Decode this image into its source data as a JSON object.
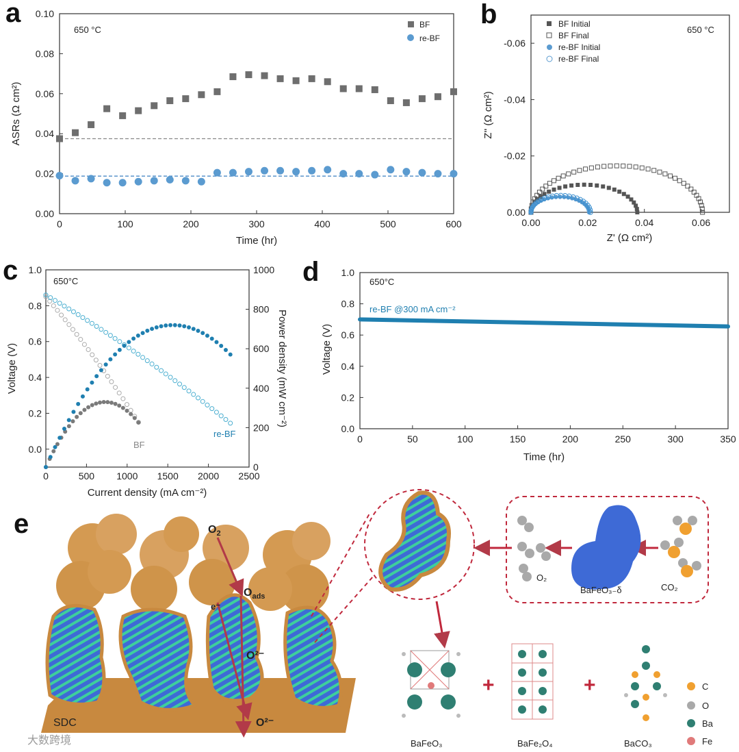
{
  "colors": {
    "bf": "#6e6e6e",
    "rebf": "#5b9bd0",
    "rebf_dark": "#1f7fb0",
    "sdc": "#d49a52",
    "arrow": "#b23a48",
    "ba": "#2f7f72",
    "fe": "#e07a7a",
    "c": "#f0a030",
    "o": "#a9a9a9",
    "blue_particle": "#3e6ad6",
    "green_stripe": "#3ecf9c"
  },
  "panels": {
    "a": "a",
    "b": "b",
    "c": "c",
    "d": "d",
    "e": "e"
  },
  "chart_data": [
    {
      "id": "a",
      "type": "scatter",
      "temperature_note": "650 °C",
      "xlabel": "Time (hr)",
      "ylabel": "ASRs (Ω cm²)",
      "xlim": [
        0,
        600
      ],
      "ylim": [
        0,
        0.1
      ],
      "xticks": [
        "0",
        "100",
        "200",
        "300",
        "400",
        "500",
        "600"
      ],
      "yticks": [
        "0.00",
        "0.02",
        "0.04",
        "0.06",
        "0.08",
        "0.10"
      ],
      "series": [
        {
          "name": "BF",
          "marker": "square",
          "x": [
            0,
            24,
            48,
            72,
            96,
            120,
            144,
            168,
            192,
            216,
            240,
            264,
            288,
            312,
            336,
            360,
            384,
            408,
            432,
            456,
            480,
            504,
            528,
            552,
            576,
            600
          ],
          "y": [
            0.0375,
            0.0405,
            0.0445,
            0.0525,
            0.049,
            0.0515,
            0.054,
            0.0565,
            0.0575,
            0.0595,
            0.061,
            0.0685,
            0.0695,
            0.069,
            0.0675,
            0.0665,
            0.0675,
            0.066,
            0.0625,
            0.0625,
            0.062,
            0.0565,
            0.0555,
            0.0575,
            0.0585,
            0.061
          ]
        },
        {
          "name": "re-BF",
          "marker": "circle",
          "x": [
            0,
            24,
            48,
            72,
            96,
            120,
            144,
            168,
            192,
            216,
            240,
            264,
            288,
            312,
            336,
            360,
            384,
            408,
            432,
            456,
            480,
            504,
            528,
            552,
            576,
            600
          ],
          "y": [
            0.019,
            0.0165,
            0.0175,
            0.0155,
            0.0155,
            0.016,
            0.0165,
            0.017,
            0.0165,
            0.016,
            0.0205,
            0.0205,
            0.021,
            0.0215,
            0.0215,
            0.021,
            0.0215,
            0.022,
            0.02,
            0.02,
            0.0195,
            0.022,
            0.021,
            0.0205,
            0.02,
            0.02
          ]
        }
      ],
      "reference_lines": [
        {
          "series": "BF",
          "y": 0.0375
        },
        {
          "series": "re-BF",
          "y": 0.0188
        }
      ]
    },
    {
      "id": "b",
      "type": "scatter",
      "temperature_note": "650 °C",
      "xlabel": "Z' (Ω cm²)",
      "ylabel": "Z'' (Ω cm²)",
      "xlim": [
        0,
        0.07
      ],
      "ylim": [
        0,
        -0.07
      ],
      "xticks": [
        "0.00",
        "0.02",
        "0.04",
        "0.06"
      ],
      "yticks": [
        "0.00",
        "-0.02",
        "-0.04",
        "-0.06"
      ],
      "series": [
        {
          "name": "BF Initial",
          "marker": "filled-square",
          "x_start": 0.0,
          "x_end": 0.0375,
          "peak": 0.0098
        },
        {
          "name": "BF Final",
          "marker": "open-square",
          "x_start": 0.0,
          "x_end": 0.0605,
          "peak": 0.0165
        },
        {
          "name": "re-BF Initial",
          "marker": "filled-circle",
          "x_start": 0.0,
          "x_end": 0.0205,
          "peak": 0.0055
        },
        {
          "name": "re-BF Final",
          "marker": "open-circle",
          "x_start": 0.0,
          "x_end": 0.021,
          "peak": 0.006
        }
      ]
    },
    {
      "id": "c",
      "type": "line",
      "temperature_note": "650°C",
      "xlabel": "Current density (mA cm⁻²)",
      "ylabel": "Voltage (V)",
      "y2label": "Power density (mW cm⁻²)",
      "xlim": [
        0,
        2500
      ],
      "ylim": [
        -0.1,
        1.0
      ],
      "y2lim": [
        0,
        1000
      ],
      "xticks": [
        "0",
        "500",
        "1000",
        "1500",
        "2000",
        "2500"
      ],
      "yticks": [
        "0.0",
        "0.2",
        "0.4",
        "0.6",
        "0.8",
        "1.0"
      ],
      "y2ticks": [
        "0",
        "200",
        "400",
        "600",
        "800",
        "1000"
      ],
      "series": [
        {
          "name": "BF",
          "voltage_ocv": 0.85,
          "i_max": 1140,
          "voltage_end": 0.15,
          "peak_power": 330,
          "peak_at": 730
        },
        {
          "name": "re-BF",
          "voltage_ocv": 0.86,
          "i_max": 2270,
          "voltage_end": 0.145,
          "peak_power": 720,
          "peak_at": 1560
        }
      ],
      "labels": [
        "BF",
        "re-BF"
      ]
    },
    {
      "id": "d",
      "type": "line",
      "temperature_note": "650°C",
      "series_label": "re-BF @300 mA cm⁻²",
      "xlabel": "Time (hr)",
      "ylabel": "Voltage (V)",
      "xlim": [
        0,
        350
      ],
      "ylim": [
        0,
        1.0
      ],
      "xticks": [
        "0",
        "50",
        "100",
        "150",
        "200",
        "250",
        "300",
        "350"
      ],
      "yticks": [
        "0.0",
        "0.2",
        "0.4",
        "0.6",
        "0.8",
        "1.0"
      ],
      "series": [
        {
          "name": "re-BF",
          "x": [
            0,
            350
          ],
          "y": [
            0.7,
            0.655
          ]
        }
      ]
    }
  ],
  "schematic": {
    "o2_top": "O",
    "o2_top_sub": "2",
    "o_ads": "O",
    "o_ads_sub": "ads",
    "e_minus": "e⁻",
    "o2minus_mid": "O²⁻",
    "o2minus_bottom": "O²⁻",
    "substrate": "SDC",
    "process_o2": "O₂",
    "process_bafeo": "BaFeO₃₋δ",
    "process_co2": "CO₂",
    "products": [
      "BaFeO₃",
      "BaFe₂O₄",
      "BaCO₃"
    ],
    "legend": [
      {
        "element": "C",
        "color": "#f0a030"
      },
      {
        "element": "O",
        "color": "#a9a9a9"
      },
      {
        "element": "Ba",
        "color": "#2f7f72"
      },
      {
        "element": "Fe",
        "color": "#e07a7a"
      }
    ]
  },
  "watermark": "大数跨境"
}
